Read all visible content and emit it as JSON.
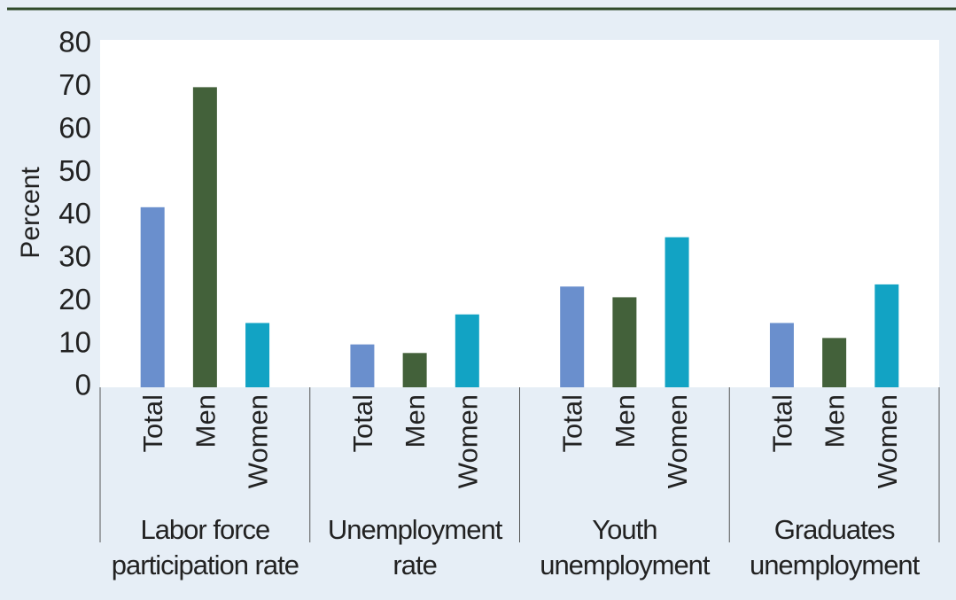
{
  "chart_data": {
    "type": "bar",
    "ylabel": "Percent",
    "categories": [
      "Labor force participation rate",
      "Unemployment rate",
      "Youth unemployment",
      "Graduates unemployment"
    ],
    "series": [
      {
        "name": "Total",
        "color": "#6a8fcd",
        "values": [
          42,
          10,
          23.5,
          15
        ]
      },
      {
        "name": "Men",
        "color": "#43613a",
        "values": [
          70,
          8,
          21,
          11.5
        ]
      },
      {
        "name": "Women",
        "color": "#12a3c4",
        "values": [
          15,
          17,
          35,
          24
        ]
      }
    ],
    "ylim": [
      0,
      80
    ],
    "yticks": [
      0,
      10,
      20,
      30,
      40,
      50,
      60,
      70,
      80
    ],
    "grid": false
  }
}
